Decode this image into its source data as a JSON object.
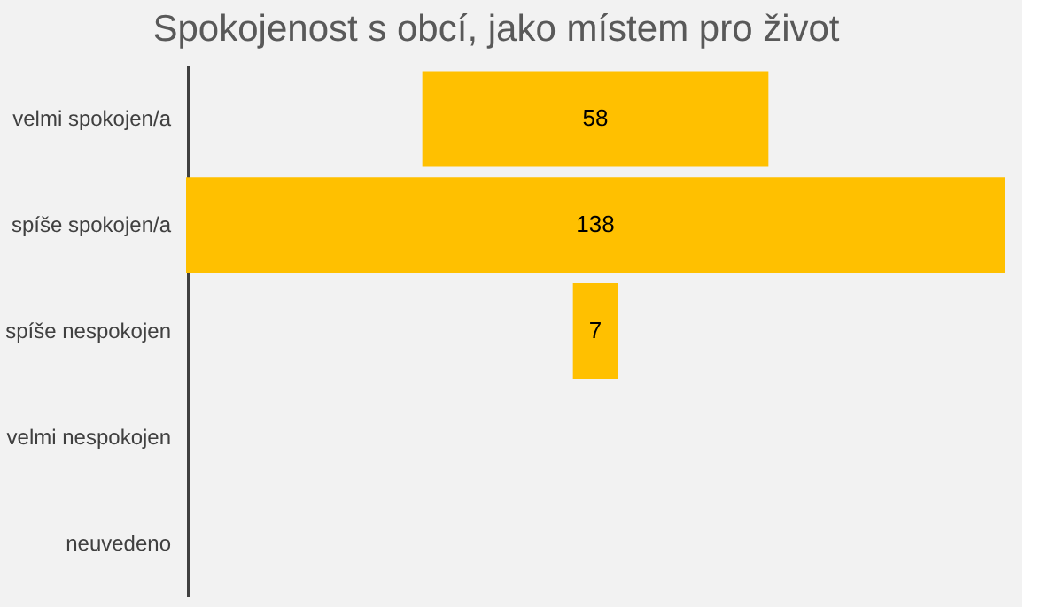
{
  "chart_data": {
    "type": "other",
    "title": "Spokojenost s obcí, jako místem pro život",
    "categories": [
      "velmi spokojen/a",
      "spíše spokojen/a",
      "spíše nespokojen",
      "velmi nespokojen",
      "neuvedeno"
    ],
    "values": [
      58,
      138,
      7,
      null,
      null
    ],
    "value_labels": [
      "58",
      "138",
      "7",
      null,
      null
    ],
    "color": "#ffc000"
  }
}
